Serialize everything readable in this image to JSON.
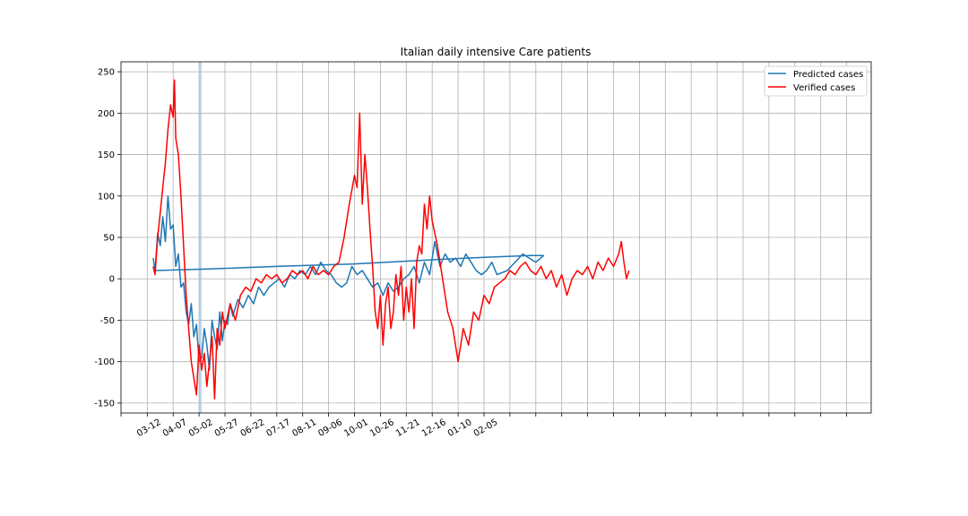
{
  "chart_data": {
    "type": "line",
    "title": "Italian daily intensive Care patients",
    "xlabel": "",
    "ylabel": "",
    "ylim": [
      -162,
      262
    ],
    "yticks": [
      -150,
      -100,
      -50,
      0,
      50,
      100,
      150,
      200,
      250
    ],
    "x_tick_labels": [
      "03-12",
      "04-07",
      "05-02",
      "05-27",
      "06-22",
      "07-17",
      "08-11",
      "09-06",
      "10-01",
      "10-26",
      "11-21",
      "12-16",
      "01-10",
      "02-05"
    ],
    "grid": true,
    "legend_placement": "top-right",
    "highlight_band": {
      "label": "",
      "x_start_tick": 2.0,
      "x_end_tick": 2.1
    },
    "series": [
      {
        "name": "Predicted cases",
        "color": "#1f77b4",
        "points": [
          [
            0.23,
            25
          ],
          [
            0.3,
            10
          ],
          [
            0.4,
            55
          ],
          [
            0.5,
            40
          ],
          [
            0.6,
            75
          ],
          [
            0.7,
            45
          ],
          [
            0.8,
            100
          ],
          [
            0.9,
            60
          ],
          [
            1.0,
            65
          ],
          [
            1.1,
            15
          ],
          [
            1.2,
            30
          ],
          [
            1.3,
            -10
          ],
          [
            1.4,
            -5
          ],
          [
            1.5,
            -40
          ],
          [
            1.6,
            -55
          ],
          [
            1.7,
            -30
          ],
          [
            1.8,
            -70
          ],
          [
            1.9,
            -55
          ],
          [
            2.0,
            -100
          ],
          [
            2.1,
            -95
          ],
          [
            2.2,
            -60
          ],
          [
            2.3,
            -80
          ],
          [
            2.4,
            -110
          ],
          [
            2.5,
            -50
          ],
          [
            2.6,
            -70
          ],
          [
            2.7,
            -85
          ],
          [
            2.8,
            -40
          ],
          [
            2.9,
            -75
          ],
          [
            3.0,
            -50
          ],
          [
            3.1,
            -55
          ],
          [
            3.2,
            -30
          ],
          [
            3.3,
            -45
          ],
          [
            3.5,
            -25
          ],
          [
            3.7,
            -35
          ],
          [
            3.9,
            -20
          ],
          [
            4.1,
            -30
          ],
          [
            4.3,
            -10
          ],
          [
            4.5,
            -20
          ],
          [
            4.7,
            -10
          ],
          [
            4.9,
            -5
          ],
          [
            5.1,
            0
          ],
          [
            5.3,
            -10
          ],
          [
            5.5,
            5
          ],
          [
            5.7,
            0
          ],
          [
            5.9,
            10
          ],
          [
            6.1,
            5
          ],
          [
            6.3,
            15
          ],
          [
            6.5,
            5
          ],
          [
            6.7,
            20
          ],
          [
            6.9,
            10
          ],
          [
            7.1,
            5
          ],
          [
            7.3,
            -5
          ],
          [
            7.5,
            -10
          ],
          [
            7.7,
            -5
          ],
          [
            7.9,
            15
          ],
          [
            8.1,
            5
          ],
          [
            8.3,
            10
          ],
          [
            8.5,
            0
          ],
          [
            8.7,
            -10
          ],
          [
            8.9,
            -5
          ],
          [
            9.1,
            -20
          ],
          [
            9.3,
            -5
          ],
          [
            9.5,
            -15
          ],
          [
            9.7,
            -10
          ],
          [
            9.9,
            0
          ],
          [
            10.1,
            5
          ],
          [
            10.3,
            15
          ],
          [
            10.5,
            -5
          ],
          [
            10.7,
            20
          ],
          [
            10.9,
            5
          ],
          [
            11.1,
            45
          ],
          [
            11.3,
            15
          ],
          [
            11.5,
            30
          ],
          [
            11.7,
            20
          ],
          [
            11.9,
            25
          ],
          [
            12.1,
            15
          ],
          [
            12.3,
            30
          ],
          [
            12.5,
            20
          ],
          [
            12.7,
            10
          ],
          [
            12.9,
            5
          ],
          [
            13.1,
            10
          ],
          [
            13.3,
            20
          ],
          [
            13.5,
            5
          ],
          [
            13.9,
            10
          ],
          [
            14.5,
            30
          ],
          [
            15.0,
            20
          ],
          [
            15.3,
            28
          ],
          [
            14.8,
            28
          ],
          [
            13.0,
            26
          ],
          [
            11.0,
            23
          ],
          [
            8.0,
            18
          ],
          [
            5.0,
            15
          ],
          [
            2.5,
            12
          ],
          [
            0.3,
            10
          ]
        ]
      },
      {
        "name": "Verified cases",
        "color": "#ff0000",
        "points": [
          [
            0.23,
            15
          ],
          [
            0.3,
            5
          ],
          [
            0.4,
            50
          ],
          [
            0.5,
            80
          ],
          [
            0.6,
            110
          ],
          [
            0.7,
            140
          ],
          [
            0.8,
            180
          ],
          [
            0.9,
            210
          ],
          [
            1.0,
            195
          ],
          [
            1.05,
            240
          ],
          [
            1.1,
            170
          ],
          [
            1.2,
            150
          ],
          [
            1.3,
            100
          ],
          [
            1.4,
            40
          ],
          [
            1.5,
            -20
          ],
          [
            1.6,
            -60
          ],
          [
            1.7,
            -100
          ],
          [
            1.8,
            -120
          ],
          [
            1.9,
            -140
          ],
          [
            2.0,
            -80
          ],
          [
            2.1,
            -110
          ],
          [
            2.2,
            -90
          ],
          [
            2.3,
            -130
          ],
          [
            2.4,
            -100
          ],
          [
            2.5,
            -70
          ],
          [
            2.6,
            -145
          ],
          [
            2.7,
            -60
          ],
          [
            2.8,
            -80
          ],
          [
            2.9,
            -40
          ],
          [
            3.0,
            -60
          ],
          [
            3.2,
            -30
          ],
          [
            3.4,
            -50
          ],
          [
            3.6,
            -20
          ],
          [
            3.8,
            -10
          ],
          [
            4.0,
            -15
          ],
          [
            4.2,
            0
          ],
          [
            4.4,
            -5
          ],
          [
            4.6,
            5
          ],
          [
            4.8,
            0
          ],
          [
            5.0,
            5
          ],
          [
            5.2,
            -5
          ],
          [
            5.4,
            0
          ],
          [
            5.6,
            10
          ],
          [
            5.8,
            5
          ],
          [
            6.0,
            10
          ],
          [
            6.2,
            0
          ],
          [
            6.4,
            15
          ],
          [
            6.6,
            5
          ],
          [
            6.8,
            10
          ],
          [
            7.0,
            5
          ],
          [
            7.2,
            15
          ],
          [
            7.4,
            20
          ],
          [
            7.6,
            50
          ],
          [
            7.8,
            90
          ],
          [
            8.0,
            125
          ],
          [
            8.1,
            110
          ],
          [
            8.2,
            200
          ],
          [
            8.3,
            90
          ],
          [
            8.4,
            150
          ],
          [
            8.5,
            110
          ],
          [
            8.6,
            60
          ],
          [
            8.7,
            15
          ],
          [
            8.8,
            -40
          ],
          [
            8.9,
            -60
          ],
          [
            9.0,
            -20
          ],
          [
            9.1,
            -80
          ],
          [
            9.2,
            -30
          ],
          [
            9.3,
            -10
          ],
          [
            9.4,
            -60
          ],
          [
            9.5,
            -40
          ],
          [
            9.6,
            5
          ],
          [
            9.7,
            -20
          ],
          [
            9.8,
            15
          ],
          [
            9.9,
            -50
          ],
          [
            10.0,
            -10
          ],
          [
            10.1,
            -40
          ],
          [
            10.2,
            0
          ],
          [
            10.3,
            -60
          ],
          [
            10.4,
            20
          ],
          [
            10.5,
            40
          ],
          [
            10.6,
            30
          ],
          [
            10.7,
            90
          ],
          [
            10.8,
            60
          ],
          [
            10.9,
            100
          ],
          [
            11.0,
            70
          ],
          [
            11.2,
            40
          ],
          [
            11.4,
            0
          ],
          [
            11.6,
            -40
          ],
          [
            11.8,
            -60
          ],
          [
            12.0,
            -100
          ],
          [
            12.2,
            -60
          ],
          [
            12.4,
            -80
          ],
          [
            12.6,
            -40
          ],
          [
            12.8,
            -50
          ],
          [
            13.0,
            -20
          ],
          [
            13.2,
            -30
          ],
          [
            13.4,
            -10
          ],
          [
            13.6,
            -5
          ],
          [
            13.8,
            0
          ],
          [
            14.0,
            10
          ],
          [
            14.2,
            5
          ],
          [
            14.4,
            15
          ],
          [
            14.6,
            20
          ],
          [
            14.8,
            10
          ],
          [
            15.0,
            5
          ],
          [
            15.2,
            15
          ],
          [
            15.4,
            0
          ],
          [
            15.6,
            10
          ],
          [
            15.8,
            -10
          ],
          [
            16.0,
            5
          ],
          [
            16.2,
            -20
          ],
          [
            16.4,
            0
          ],
          [
            16.6,
            10
          ],
          [
            16.8,
            5
          ],
          [
            17.0,
            15
          ],
          [
            17.2,
            0
          ],
          [
            17.4,
            20
          ],
          [
            17.6,
            10
          ],
          [
            17.8,
            25
          ],
          [
            18.0,
            15
          ],
          [
            18.2,
            30
          ],
          [
            18.3,
            45
          ],
          [
            18.4,
            20
          ],
          [
            18.5,
            0
          ],
          [
            18.6,
            10
          ]
        ]
      }
    ]
  }
}
